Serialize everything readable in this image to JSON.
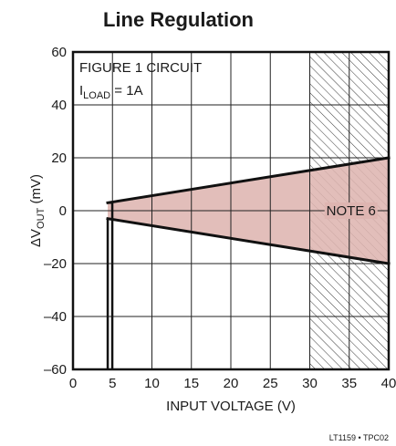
{
  "chart_data": {
    "type": "area",
    "title": "Line Regulation",
    "xlabel": "INPUT VOLTAGE (V)",
    "ylabel_prefix": "ΔV",
    "ylabel_sub": "OUT",
    "ylabel_suffix": " (mV)",
    "xlim": [
      0,
      40
    ],
    "ylim": [
      -60,
      60
    ],
    "x_ticks": [
      0,
      5,
      10,
      15,
      20,
      25,
      30,
      35,
      40
    ],
    "x_tick_labels": [
      "0",
      "5",
      "10",
      "15",
      "20",
      "25",
      "30",
      "35",
      "40"
    ],
    "y_ticks": [
      -60,
      -40,
      -20,
      0,
      20,
      40,
      60
    ],
    "y_tick_labels": [
      "–60",
      "–40",
      "–20",
      "0",
      "20",
      "40",
      "60"
    ],
    "grid": true,
    "annotation": {
      "line1": "FIGURE 1 CIRCUIT",
      "line2_prefix": "I",
      "line2_sub": "LOAD",
      "line2_suffix": " = 1A"
    },
    "note_region": {
      "label": "NOTE 6",
      "x_start": 30,
      "x_end": 40
    },
    "series": [
      {
        "x": [
          4.4,
          40
        ],
        "values": [
          3,
          20
        ]
      },
      {
        "x": [
          4.4,
          40
        ],
        "values": [
          -3,
          -20
        ]
      }
    ],
    "dropout_line": {
      "x": 4.4,
      "y_from": -60,
      "y_to": -3
    },
    "fill_color": "#deb5b1",
    "line_color": "#111111",
    "footer": "LT1159 • TPC02"
  }
}
